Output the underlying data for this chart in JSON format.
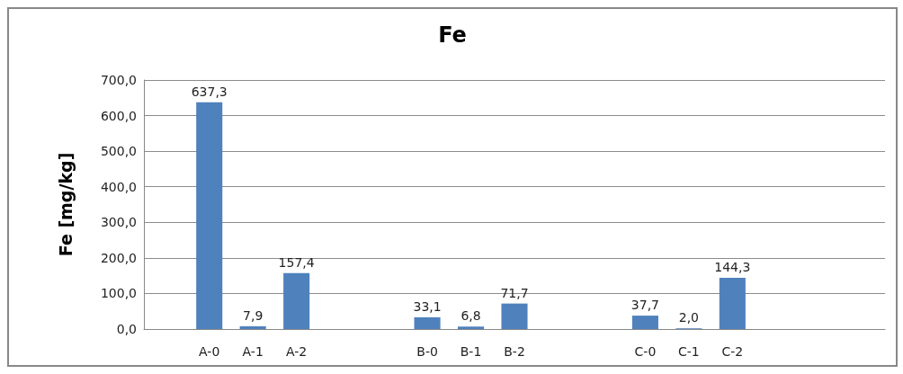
{
  "chart_data": {
    "type": "bar",
    "title": "Fe",
    "ylabel": "Fe [mg/kg]",
    "categories": [
      null,
      "A-0",
      "A-1",
      "A-2",
      null,
      null,
      "B-0",
      "B-1",
      "B-2",
      null,
      null,
      "C-0",
      "C-1",
      "C-2",
      null,
      null,
      null
    ],
    "values": [
      null,
      637.3,
      7.9,
      157.4,
      null,
      null,
      33.1,
      6.8,
      71.7,
      null,
      null,
      37.7,
      2.0,
      144.3,
      null,
      null,
      null
    ],
    "value_labels": [
      null,
      "637,3",
      "7,9",
      "157,4",
      null,
      null,
      "33,1",
      "6,8",
      "71,7",
      null,
      null,
      "37,7",
      "2,0",
      "144,3",
      null,
      null,
      null
    ],
    "color": "#4f81bd",
    "ylim": [
      0,
      700
    ],
    "yticks": [
      {
        "value": 0,
        "label": "0,0"
      },
      {
        "value": 100,
        "label": "100,0"
      },
      {
        "value": 200,
        "label": "200,0"
      },
      {
        "value": 300,
        "label": "300,0"
      },
      {
        "value": 400,
        "label": "400,0"
      },
      {
        "value": 500,
        "label": "500,0"
      },
      {
        "value": 600,
        "label": "600,0"
      },
      {
        "value": 700,
        "label": "700,0"
      }
    ],
    "grid": "y"
  }
}
